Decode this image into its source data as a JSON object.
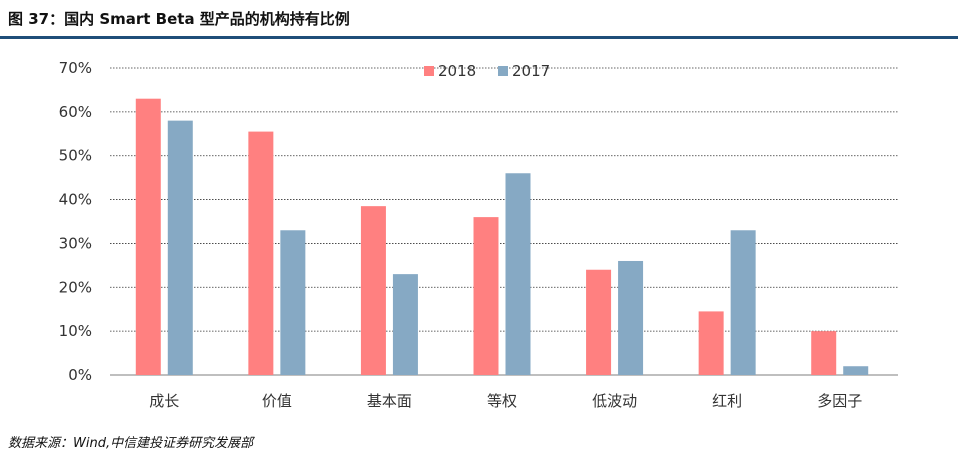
{
  "figure": {
    "title": "图 37：国内 Smart Beta 型产品的机构持有比例",
    "source": "数据来源：Wind,中信建投证券研究发展部"
  },
  "colors": {
    "rule": "#1f4e79",
    "series_2018": "#ff8080",
    "series_2017": "#86a9c4"
  },
  "chart_data": {
    "type": "bar",
    "categories": [
      "成长",
      "价值",
      "基本面",
      "等权",
      "低波动",
      "红利",
      "多因子"
    ],
    "series": [
      {
        "name": "2018",
        "values": [
          63.0,
          55.5,
          38.5,
          36.0,
          24.0,
          14.5,
          10.0
        ]
      },
      {
        "name": "2017",
        "values": [
          58.0,
          33.0,
          23.0,
          46.0,
          26.0,
          33.0,
          2.0
        ]
      }
    ],
    "ylim": [
      0,
      70
    ],
    "yticks": [
      0,
      10,
      20,
      30,
      40,
      50,
      60,
      70
    ],
    "ytick_labels": [
      "0%",
      "10%",
      "20%",
      "30%",
      "40%",
      "50%",
      "60%",
      "70%"
    ],
    "grid": true,
    "legend_position": "top-center"
  }
}
